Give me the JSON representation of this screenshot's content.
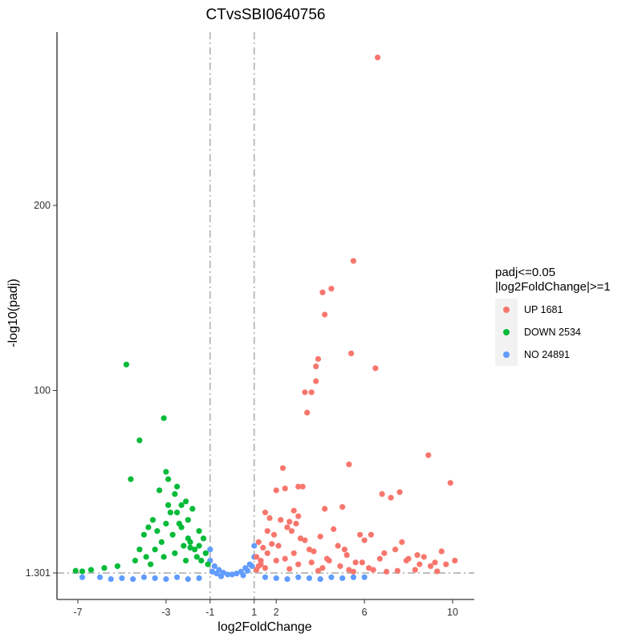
{
  "chart_data": {
    "type": "scatter",
    "title": "CTvsSBI0640756",
    "xlabel": "log2FoldChange",
    "ylabel": "-log10(padj)",
    "xlim": [
      -7.6,
      10.6
    ],
    "ylim": [
      -14,
      292
    ],
    "x_ticks": [
      -7,
      -3,
      -1,
      1,
      2,
      6,
      10
    ],
    "x_tick_labels": [
      "-7",
      "-3",
      "-1",
      "1",
      "2",
      "6",
      "10"
    ],
    "y_ticks": [
      1.301,
      100,
      200
    ],
    "y_tick_labels": [
      "1.301",
      "100",
      "200"
    ],
    "thresholds": {
      "x": [
        -1,
        1
      ],
      "y": 1.301,
      "line_color": "#BEBEBE",
      "line_style": "dotdash"
    },
    "grid": false,
    "legend": {
      "position": "right",
      "title_lines": [
        "padj<=0.05",
        "|log2FoldChange|>=1"
      ],
      "entries": [
        {
          "label": "UP 1681",
          "color": "#F8766D"
        },
        {
          "label": "DOWN 2534",
          "color": "#00BA38"
        },
        {
          "label": "NO 24891",
          "color": "#619CFF"
        }
      ]
    },
    "series": [
      {
        "name": "UP 1681",
        "color": "#F8766D",
        "x": [
          6.6,
          5.5,
          4.5,
          4.1,
          4.2,
          5.4,
          3.9,
          3.8,
          6.5,
          3.3,
          3.6,
          3.8,
          3.4,
          8.9,
          5.3,
          9.9,
          7.6,
          3.0,
          2.4,
          2.0,
          2.3,
          5.0,
          7.2,
          6.8,
          5.8,
          4.2,
          3.0,
          3.2,
          9.5,
          8.4,
          6.3,
          7.7,
          4.6,
          2.8,
          1.6,
          1.3,
          10.1,
          5.6,
          4.3,
          3.5,
          2.6,
          1.9,
          1.2,
          1.5,
          2.2,
          2.7,
          3.1,
          1.8,
          2.9,
          1.4,
          1.7,
          2.5,
          3.7,
          4.0,
          4.8,
          5.2,
          6.0,
          6.9,
          7.4,
          8.0,
          8.7,
          9.2,
          9.7,
          1.1,
          1.6,
          2.1,
          2.8,
          3.3,
          4.4,
          5.1,
          5.9,
          6.7,
          7.9,
          8.5,
          9.0,
          1.3,
          2.4,
          3.6,
          4.9,
          6.2,
          1.2,
          2.0,
          3.0,
          4.1,
          5.3,
          6.4,
          7.5,
          8.3,
          9.3,
          1.1,
          1.5,
          2.6,
          3.9,
          5.5,
          7.0
        ],
        "y": [
          280,
          170,
          155,
          153,
          141,
          120,
          117,
          113,
          112,
          99,
          99,
          105,
          88,
          65,
          60,
          50,
          45,
          48,
          47,
          46,
          58,
          37,
          42,
          44,
          22,
          36,
          32,
          48,
          13,
          11,
          22,
          18,
          25,
          35,
          12,
          8,
          8,
          7,
          9,
          14,
          29,
          22,
          18,
          34,
          30,
          24,
          20,
          17,
          28,
          15,
          31,
          26,
          13,
          21,
          16,
          11,
          19,
          12,
          14,
          9,
          10,
          7,
          6,
          10,
          24,
          16,
          12,
          19,
          8,
          14,
          7,
          9,
          8,
          6,
          5,
          6,
          9,
          7,
          5,
          4,
          5,
          8,
          6,
          4,
          3,
          3,
          2.5,
          3,
          2.2,
          3,
          4,
          3.5,
          2.5,
          2,
          2
        ]
      },
      {
        "name": "DOWN 2534",
        "color": "#00BA38",
        "x": [
          -4.8,
          -3.1,
          -4.2,
          -4.6,
          -3.0,
          -2.5,
          -2.9,
          -3.3,
          -2.6,
          -2.1,
          -2.3,
          -3.6,
          -3.8,
          -2.8,
          -4.0,
          -1.8,
          -2.0,
          -1.5,
          -1.3,
          -1.2,
          -2.4,
          -2.7,
          -3.2,
          -3.5,
          -2.2,
          -1.9,
          -1.6,
          -1.4,
          -3.9,
          -4.4,
          -5.2,
          -5.8,
          -6.4,
          -7.1,
          -6.8,
          -2.0,
          -2.5,
          -3.0,
          -1.7,
          -1.1,
          -3.4,
          -2.9,
          -4.2,
          -2.3,
          -1.9,
          -2.6,
          -3.1,
          -3.7,
          -1.5,
          -2.1
        ],
        "y": [
          114,
          85,
          73,
          52,
          56,
          48,
          52,
          46,
          44,
          40,
          38,
          30,
          26,
          34,
          22,
          36,
          30,
          24,
          20,
          12,
          28,
          22,
          18,
          14,
          16,
          15,
          10,
          8,
          10,
          8,
          5,
          4,
          3,
          2.5,
          2.2,
          20,
          34,
          28,
          14,
          6,
          24,
          38,
          14,
          26,
          18,
          12,
          10,
          6,
          16,
          8
        ]
      },
      {
        "name": "NO 24891",
        "color": "#619CFF",
        "x": [
          -6.8,
          -6.0,
          -5.5,
          -5.0,
          -4.5,
          -4.0,
          -3.5,
          -3.0,
          -2.5,
          -2.0,
          -1.5,
          -1.0,
          -0.8,
          -0.6,
          -0.4,
          -0.2,
          0.0,
          0.2,
          0.4,
          0.6,
          0.8,
          1.0,
          1.5,
          2.0,
          2.5,
          3.0,
          3.5,
          4.0,
          4.5,
          5.0,
          5.5,
          6.0,
          -0.9,
          -0.7,
          -0.5,
          0.5,
          0.7,
          0.9,
          -1.0,
          1.0
        ],
        "y": [
          -1,
          -1,
          -2,
          -1.5,
          -2,
          -1,
          -1.5,
          -2,
          -1,
          -2,
          -1.5,
          8,
          5,
          3,
          1.5,
          0.5,
          0.5,
          1,
          2,
          4,
          6,
          10,
          -1,
          -1.5,
          -2,
          -1,
          -1.5,
          -2,
          -1,
          -1.5,
          -1,
          -1,
          2,
          1,
          -0.5,
          0,
          2.5,
          5,
          14,
          16
        ]
      }
    ]
  }
}
